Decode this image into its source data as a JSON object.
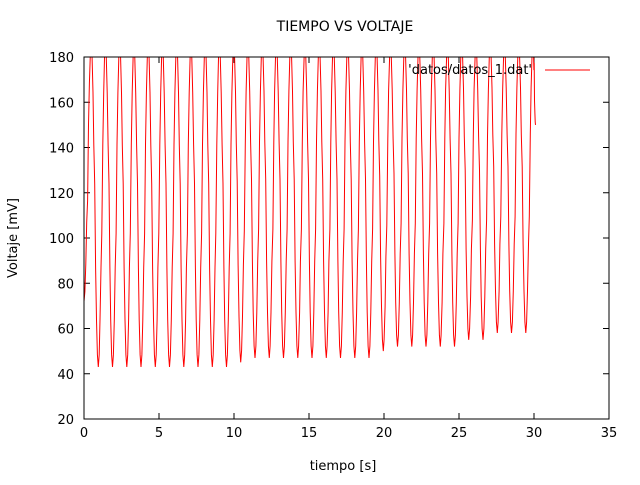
{
  "chart_data": {
    "type": "line",
    "title": "TIEMPO VS VOLTAJE",
    "xlabel": "tiempo [s]",
    "ylabel": "Voltaje [mV]",
    "xlim": [
      0,
      35
    ],
    "ylim": [
      20,
      180
    ],
    "xticks": [
      "0",
      "5",
      "10",
      "15",
      "20",
      "25",
      "30",
      "35"
    ],
    "yticks": [
      "20",
      "40",
      "60",
      "80",
      "100",
      "120",
      "140",
      "160",
      "180"
    ],
    "grid": false,
    "legend_position": "top-right",
    "series": [
      {
        "name": "'datos/datos_1.dat'",
        "color": "#ff0000",
        "period_s": 0.95,
        "t_start": 0,
        "t_end": 30.1,
        "x": [
          0,
          0.48,
          0.95,
          1.43,
          1.9,
          2.38,
          2.85,
          3.33,
          3.8,
          4.28,
          4.75,
          5.23,
          5.7,
          6.18,
          6.65,
          7.13,
          7.6,
          8.08,
          8.55,
          9.03,
          9.5,
          9.98,
          10.45,
          10.93,
          11.4,
          11.88,
          12.35,
          12.83,
          13.3,
          13.78,
          14.25,
          14.73,
          15.2,
          15.68,
          16.15,
          16.63,
          17.1,
          17.58,
          18.05,
          18.53,
          19.0,
          19.48,
          19.95,
          20.43,
          20.9,
          21.38,
          21.85,
          22.33,
          22.8,
          23.28,
          23.75,
          24.23,
          24.7,
          25.18,
          25.65,
          26.13,
          26.6,
          27.08,
          27.55,
          28.03,
          28.5,
          28.98,
          29.45,
          29.93,
          30.1
        ],
        "y": [
          72,
          185,
          43,
          185,
          43,
          185,
          43,
          185,
          43,
          185,
          43,
          185,
          43,
          185,
          43,
          185,
          43,
          185,
          43,
          185,
          43,
          185,
          45,
          185,
          47,
          185,
          47,
          185,
          47,
          185,
          47,
          185,
          47,
          185,
          47,
          185,
          47,
          185,
          47,
          185,
          47,
          185,
          50,
          185,
          52,
          185,
          52,
          185,
          52,
          185,
          52,
          185,
          52,
          185,
          55,
          185,
          55,
          185,
          58,
          185,
          58,
          185,
          58,
          185,
          150
        ]
      }
    ]
  }
}
